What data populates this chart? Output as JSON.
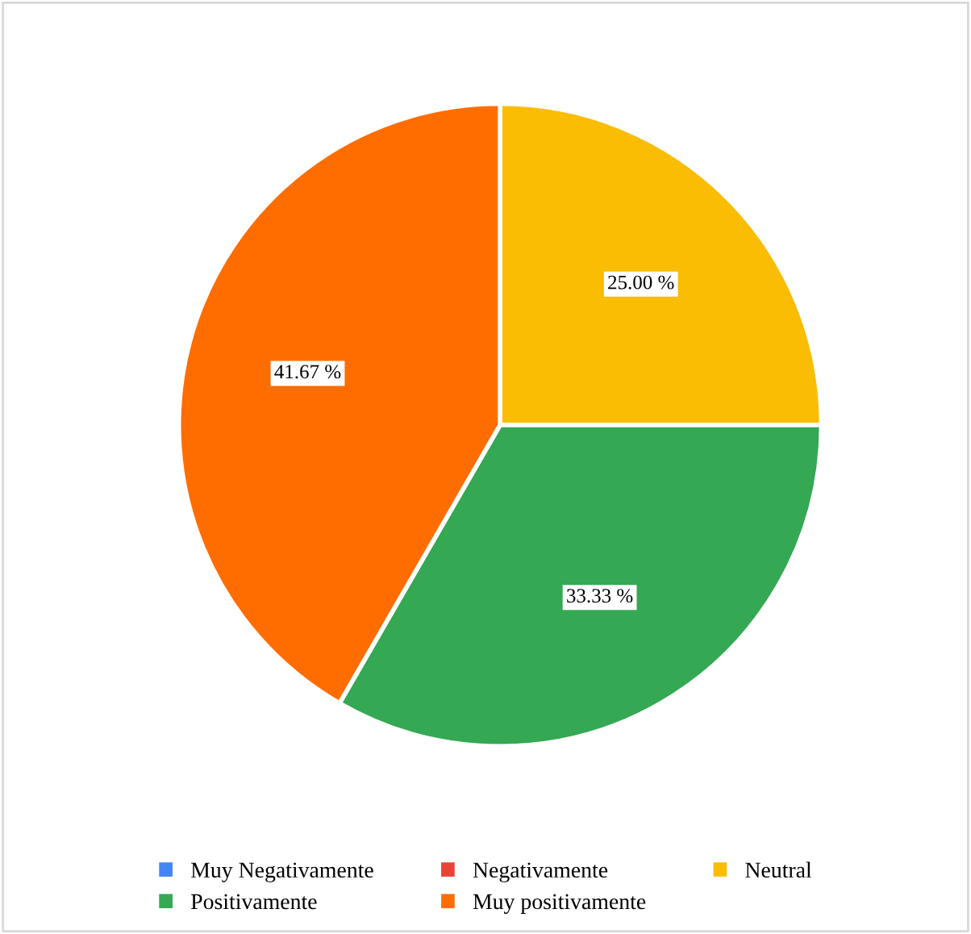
{
  "chart_data": {
    "type": "pie",
    "categories": [
      "Muy Negativamente",
      "Negativamente",
      "Neutral",
      "Positivamente",
      "Muy positivamente"
    ],
    "values": [
      0,
      0,
      25.0,
      33.33,
      41.67
    ],
    "colors": [
      "#4285f4",
      "#ea4335",
      "#fbbc04",
      "#34a853",
      "#ff6d01"
    ],
    "value_labels": [
      null,
      null,
      "25.00 %",
      "33.33 %",
      "41.67 %"
    ],
    "legend": "bottom"
  }
}
